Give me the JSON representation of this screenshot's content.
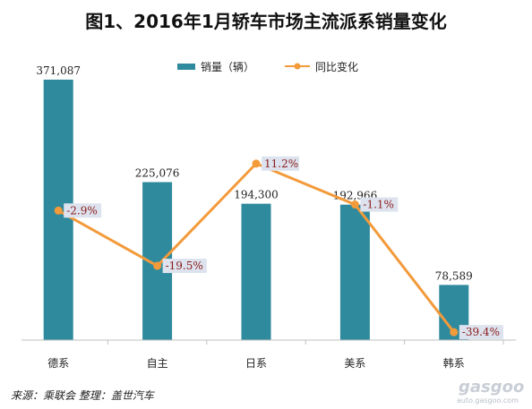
{
  "title": "图1、2016年1月轿车市场主流派系销量变化",
  "source": "来源：乘联会    整理：盖世汽车",
  "watermark": {
    "main": "gasgoo",
    "small": "auto.gasgoo.com"
  },
  "colors": {
    "bar": "#2e8a9c",
    "line": "#f39a3a",
    "pct_text": "#8b1a1a",
    "pct_bg": "#dde3ee"
  },
  "chart_data": {
    "type": "bar",
    "categories": [
      "德系",
      "自主",
      "日系",
      "美系",
      "韩系"
    ],
    "series": [
      {
        "name": "销量（辆）",
        "type": "bar",
        "values": [
          371087,
          225076,
          194300,
          192966,
          78589
        ],
        "labels": [
          "371,087",
          "225,076",
          "194,300",
          "192,966",
          "78,589"
        ]
      },
      {
        "name": "同比变化",
        "type": "line",
        "values": [
          -2.9,
          -19.5,
          11.2,
          -1.1,
          -39.4
        ],
        "labels": [
          "-2.9%",
          "-19.5%",
          "11.2%",
          "-1.1%",
          "-39.4%"
        ]
      }
    ],
    "ylim": [
      0,
      380000
    ],
    "y2lim": [
      -45,
      20
    ],
    "legend": "top-center",
    "grid": false
  }
}
